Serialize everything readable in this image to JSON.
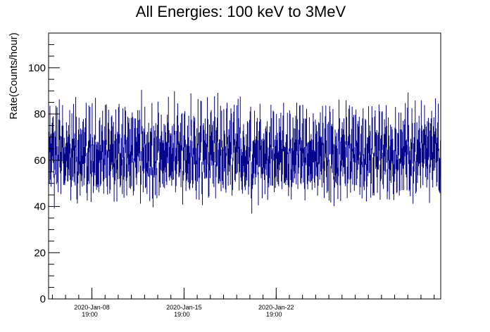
{
  "chart_data": {
    "type": "scatter",
    "title": "All Energies:  100 keV to 3MeV",
    "xlabel": "",
    "ylabel": "Rate(Counts/hour)",
    "ylim": [
      0,
      115
    ],
    "xlim_hours": [
      0,
      715
    ],
    "y_ticks": [
      "0",
      "20",
      "40",
      "60",
      "80",
      "100"
    ],
    "y_tick_values": [
      0,
      20,
      40,
      60,
      80,
      100
    ],
    "x_ticks": [
      {
        "line1": "2020-Jan-08",
        "line2": "19:00"
      },
      {
        "line1": "2020-Jan-15",
        "line2": "19:00"
      },
      {
        "line1": "2020-Jan-22",
        "line2": "19:00"
      }
    ],
    "x_tick_hours": [
      79,
      247,
      415
    ],
    "series_color": "#00008b",
    "series": [
      {
        "name": "",
        "points_per_hour": 1,
        "mean_rate": 62,
        "min_rate": 37,
        "max_rate": 93,
        "note_values": [
          62,
          58,
          71,
          66,
          55,
          60,
          64,
          69,
          73,
          57,
          52,
          61,
          65,
          67,
          59,
          70,
          63,
          56,
          62,
          74,
          68,
          58,
          54,
          60,
          66,
          72,
          64,
          59,
          61,
          57
        ]
      }
    ]
  }
}
